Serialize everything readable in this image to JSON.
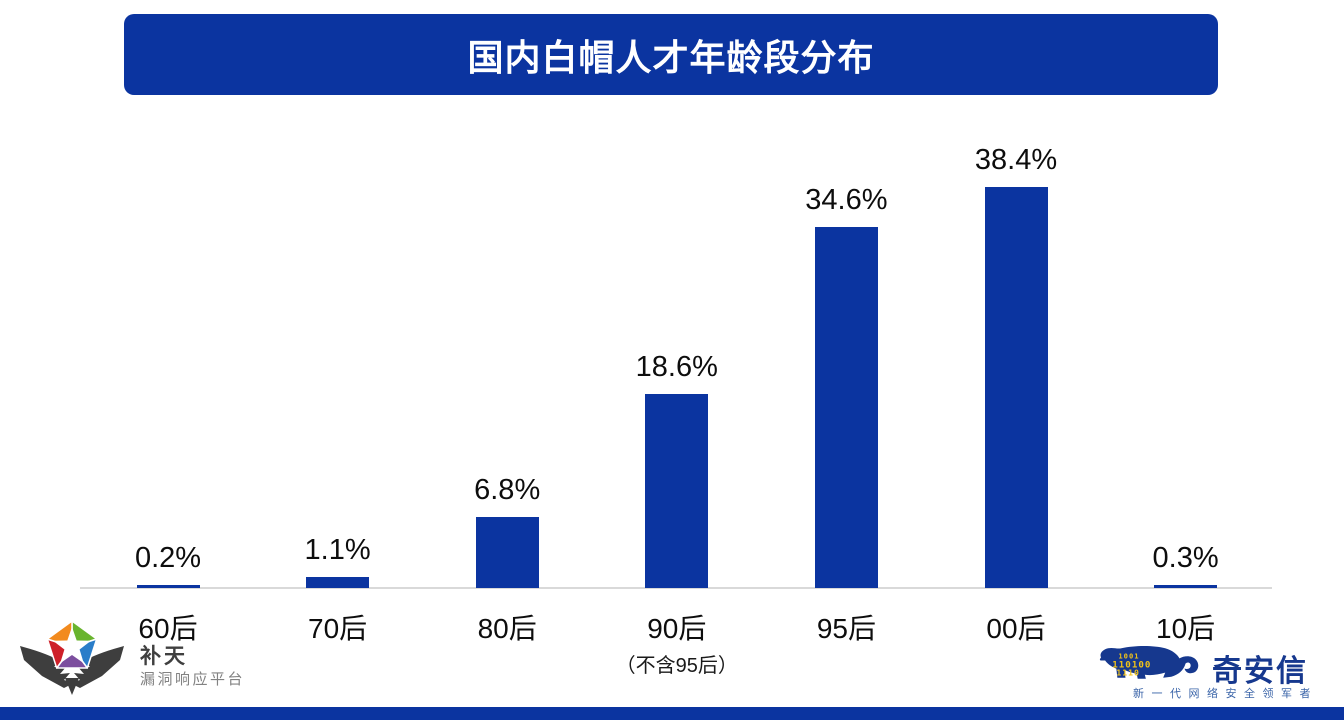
{
  "title": "国内白帽人才年龄段分布",
  "chart_data": {
    "type": "bar",
    "title": "国内白帽人才年龄段分布",
    "categories": [
      "60后",
      "70后",
      "80后",
      "90后",
      "95后",
      "00后",
      "10后"
    ],
    "values": [
      0.2,
      1.1,
      6.8,
      18.6,
      34.6,
      38.4,
      0.3
    ],
    "value_labels": [
      "0.2%",
      "1.1%",
      "6.8%",
      "18.6%",
      "34.6%",
      "38.4%",
      "0.3%"
    ],
    "category_notes": [
      "",
      "",
      "",
      "（不含95后）",
      "",
      "",
      ""
    ],
    "xlabel": "",
    "ylabel": "",
    "ylim": [
      0,
      40
    ],
    "grid": false,
    "legend": false,
    "bar_color": "#0B34A0",
    "label_position": "above-bar"
  },
  "footer": {
    "butian": {
      "name": "补天",
      "subtitle": "漏洞响应平台"
    },
    "qianxin": {
      "name": "奇安信",
      "tagline": "新一代网络安全领军者",
      "binary_rows": [
        "1001",
        "110100",
        "1110"
      ]
    }
  },
  "colors": {
    "brand_blue": "#0B34A0",
    "axis_line": "#D9D9D9",
    "label_text": "#0D0D0D",
    "butian_orange": "#F28A1E",
    "butian_green": "#69B42E",
    "butian_blue": "#2A7DC9",
    "butian_purple": "#7C4E9E",
    "butian_red": "#CE2029",
    "wing_gray": "#3E3E3E",
    "tiger_blue": "#16388E",
    "binary_yellow": "#F2C318"
  }
}
